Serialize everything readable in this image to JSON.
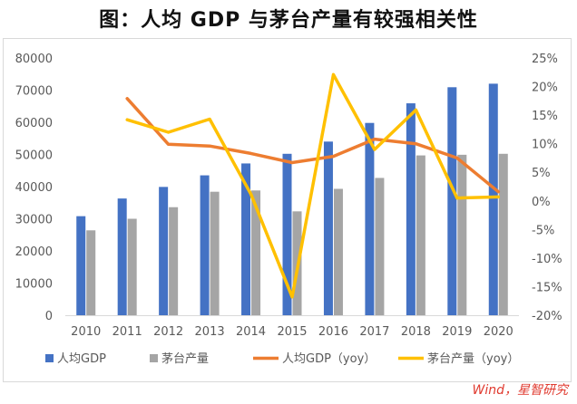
{
  "chart_data": {
    "type": "bar+line",
    "title": "图：人均 GDP 与茅台产量有较强相关性",
    "categories": [
      "2010",
      "2011",
      "2012",
      "2013",
      "2014",
      "2015",
      "2016",
      "2017",
      "2018",
      "2019",
      "2020"
    ],
    "series": [
      {
        "name": "人均GDP",
        "kind": "bar",
        "axis": "left",
        "color": "#4472c4",
        "values": [
          30800,
          36300,
          39900,
          43500,
          47200,
          50200,
          54000,
          59800,
          65900,
          70900,
          72000
        ]
      },
      {
        "name": "茅台产量",
        "kind": "bar",
        "axis": "left",
        "color": "#a5a5a5",
        "values": [
          26400,
          30000,
          33600,
          38400,
          38800,
          32300,
          39300,
          42700,
          49700,
          49900,
          50200
        ]
      },
      {
        "name": "人均GDP（yoy）",
        "kind": "line",
        "axis": "right",
        "color": "#ed7d31",
        "values": [
          null,
          17.9,
          9.9,
          9.6,
          8.3,
          6.7,
          7.8,
          10.8,
          10.0,
          7.5,
          1.6
        ]
      },
      {
        "name": "茅台产量（yoy）",
        "kind": "line",
        "axis": "right",
        "color": "#ffc000",
        "values": [
          null,
          14.2,
          12.0,
          14.3,
          1.2,
          -16.8,
          22.1,
          9.0,
          15.9,
          0.5,
          0.7
        ]
      }
    ],
    "left_axis": {
      "min": 0,
      "max": 80000,
      "step": 10000,
      "ticks": [
        "0",
        "10000",
        "20000",
        "30000",
        "40000",
        "50000",
        "60000",
        "70000",
        "80000"
      ]
    },
    "right_axis": {
      "min": -20,
      "max": 25,
      "step": 5,
      "unit": "%",
      "ticks": [
        "-20%",
        "-15%",
        "-10%",
        "-5%",
        "0%",
        "5%",
        "10%",
        "15%",
        "20%",
        "25%"
      ]
    },
    "legend_position": "bottom",
    "grid": false
  },
  "credit": "Wind，星智研究"
}
